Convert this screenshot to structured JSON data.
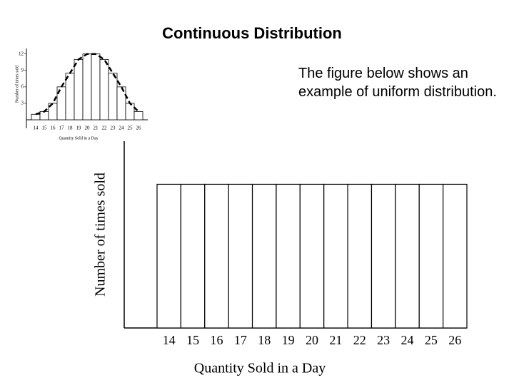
{
  "title": "Continuous Distribution",
  "text": "The figure below shows an example of uniform distribution.",
  "chart_data": [
    {
      "type": "bar",
      "x_label": "Quantity Sold in a Day",
      "y_label": "Number of times sold",
      "categories": [
        "14",
        "15",
        "16",
        "17",
        "18",
        "19",
        "20",
        "21",
        "22",
        "23",
        "24",
        "25",
        "26"
      ],
      "values": [
        1,
        1.5,
        3,
        6,
        8.5,
        11,
        12,
        12,
        11,
        8.5,
        6,
        3,
        1.5
      ],
      "ylim": [
        0,
        13
      ],
      "yticks": [
        3,
        6,
        9,
        12
      ],
      "color": "#ffffff",
      "curve": true
    },
    {
      "type": "bar",
      "x_label": "Quantity Sold in a Day",
      "y_label": "Number of times sold",
      "categories": [
        "14",
        "15",
        "16",
        "17",
        "18",
        "19",
        "20",
        "21",
        "22",
        "23",
        "24",
        "25",
        "26"
      ],
      "values": [
        1,
        1,
        1,
        1,
        1,
        1,
        1,
        1,
        1,
        1,
        1,
        1,
        1
      ],
      "ylim": [
        0,
        1.3
      ],
      "color": "#ffffff",
      "curve": false
    }
  ]
}
